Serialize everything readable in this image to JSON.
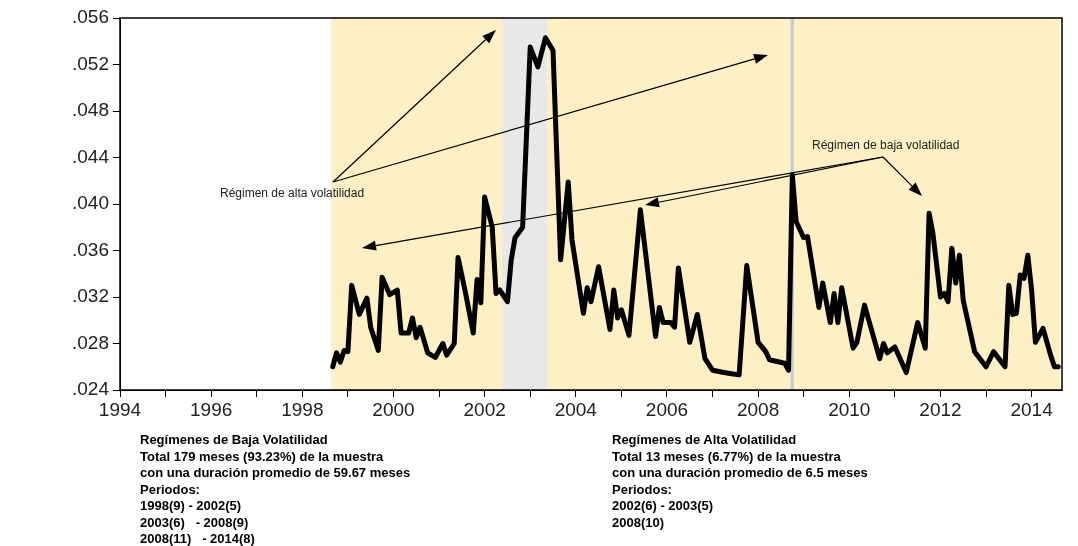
{
  "chart_data": {
    "type": "line",
    "x": [
      "1998-09",
      "1998-10",
      "1998-11",
      "1998-12",
      "1999-01",
      "1999-02",
      "1999-04",
      "1999-06",
      "1999-07",
      "1999-09",
      "1999-10",
      "1999-12",
      "2000-02",
      "2000-03",
      "2000-05",
      "2000-06",
      "2000-07",
      "2000-08",
      "2000-10",
      "2000-12",
      "2001-02",
      "2001-03",
      "2001-05",
      "2001-06",
      "2001-08",
      "2001-10",
      "2001-11",
      "2001-12",
      "2002-01",
      "2002-03",
      "2002-04",
      "2002-05",
      "2002-07",
      "2002-08",
      "2002-09",
      "2002-11",
      "2003-01",
      "2003-03",
      "2003-05",
      "2003-07",
      "2003-09",
      "2003-11",
      "2003-12",
      "2004-03",
      "2004-04",
      "2004-05",
      "2004-07",
      "2004-10",
      "2004-11",
      "2004-12",
      "2005-01",
      "2005-03",
      "2005-06",
      "2005-10",
      "2005-11",
      "2005-12",
      "2006-02",
      "2006-03",
      "2006-04",
      "2006-07",
      "2006-09",
      "2006-11",
      "2007-01",
      "2007-04",
      "2007-06",
      "2007-08",
      "2007-10",
      "2008-01",
      "2008-03",
      "2008-04",
      "2008-08",
      "2008-09",
      "2008-10",
      "2008-11",
      "2009-01",
      "2009-02",
      "2009-05",
      "2009-06",
      "2009-08",
      "2009-09",
      "2009-10",
      "2009-11",
      "2010-02",
      "2010-03",
      "2010-05",
      "2010-07",
      "2010-09",
      "2010-10",
      "2010-11",
      "2011-01",
      "2011-04",
      "2011-07",
      "2011-09",
      "2011-10",
      "2011-11",
      "2012-01",
      "2012-02",
      "2012-03",
      "2012-04",
      "2012-05",
      "2012-06",
      "2012-07",
      "2012-10",
      "2013-01",
      "2013-03",
      "2013-06",
      "2013-07",
      "2013-08",
      "2013-09",
      "2013-10",
      "2013-11",
      "2013-12",
      "2014-01",
      "2014-02",
      "2014-04",
      "2014-06",
      "2014-07",
      "2014-08"
    ],
    "series": [
      {
        "color": "#000000",
        "values": [
          0.026,
          0.0272,
          0.0264,
          0.0274,
          0.0273,
          0.033,
          0.0305,
          0.0319,
          0.0294,
          0.0274,
          0.0337,
          0.0322,
          0.0326,
          0.0289,
          0.0289,
          0.0302,
          0.0285,
          0.0294,
          0.0272,
          0.0268,
          0.028,
          0.027,
          0.028,
          0.0354,
          0.0323,
          0.0289,
          0.0335,
          0.0315,
          0.0406,
          0.038,
          0.0323,
          0.0326,
          0.0316,
          0.0352,
          0.0371,
          0.038,
          0.0535,
          0.0518,
          0.0543,
          0.0532,
          0.0352,
          0.0419,
          0.0369,
          0.0306,
          0.0328,
          0.0316,
          0.0346,
          0.0292,
          0.0326,
          0.0302,
          0.0309,
          0.0287,
          0.0395,
          0.0286,
          0.0311,
          0.0298,
          0.0298,
          0.0294,
          0.0345,
          0.0281,
          0.0305,
          0.0267,
          0.0257,
          0.0255,
          0.0254,
          0.0253,
          0.0347,
          0.0281,
          0.0273,
          0.0266,
          0.0263,
          0.0257,
          0.0425,
          0.0385,
          0.0371,
          0.0372,
          0.0311,
          0.0332,
          0.0298,
          0.0323,
          0.0298,
          0.0328,
          0.0276,
          0.0281,
          0.0313,
          0.029,
          0.0267,
          0.028,
          0.0272,
          0.0277,
          0.0255,
          0.0298,
          0.0276,
          0.0392,
          0.0375,
          0.032,
          0.0323,
          0.0316,
          0.0362,
          0.0332,
          0.0356,
          0.0317,
          0.0273,
          0.026,
          0.0273,
          0.026,
          0.033,
          0.0305,
          0.0306,
          0.0339,
          0.0336,
          0.0356,
          0.0326,
          0.0281,
          0.0293,
          0.027,
          0.026,
          0.026
        ]
      }
    ],
    "xlim": [
      "1994-01",
      "2014-09"
    ],
    "xticks": [
      {
        "value": "1994-01",
        "label": "1994"
      },
      {
        "value": "1995-01",
        "label": null
      },
      {
        "value": "1996-01",
        "label": "1996"
      },
      {
        "value": "1997-01",
        "label": null
      },
      {
        "value": "1998-01",
        "label": "1998"
      },
      {
        "value": "1999-01",
        "label": null
      },
      {
        "value": "2000-01",
        "label": "2000"
      },
      {
        "value": "2001-01",
        "label": null
      },
      {
        "value": "2002-01",
        "label": "2002"
      },
      {
        "value": "2003-01",
        "label": null
      },
      {
        "value": "2004-01",
        "label": "2004"
      },
      {
        "value": "2005-01",
        "label": null
      },
      {
        "value": "2006-01",
        "label": "2006"
      },
      {
        "value": "2007-01",
        "label": null
      },
      {
        "value": "2008-01",
        "label": "2008"
      },
      {
        "value": "2009-01",
        "label": null
      },
      {
        "value": "2010-01",
        "label": "2010"
      },
      {
        "value": "2011-01",
        "label": null
      },
      {
        "value": "2012-01",
        "label": "2012"
      },
      {
        "value": "2013-01",
        "label": null
      },
      {
        "value": "2014-01",
        "label": "2014"
      }
    ],
    "ylim": [
      0.024,
      0.056
    ],
    "yticks": [
      {
        "value": 0.024,
        "label": ".024"
      },
      {
        "value": 0.028,
        "label": ".028"
      },
      {
        "value": 0.032,
        "label": ".032"
      },
      {
        "value": 0.036,
        "label": ".036"
      },
      {
        "value": 0.04,
        "label": ".040"
      },
      {
        "value": 0.044,
        "label": ".044"
      },
      {
        "value": 0.048,
        "label": ".048"
      },
      {
        "value": 0.052,
        "label": ".052"
      },
      {
        "value": 0.056,
        "label": ".056"
      }
    ],
    "bands": [
      {
        "axis": "x",
        "from": "1998-09",
        "to": "2002-05",
        "color": "#fcf0c4"
      },
      {
        "axis": "x",
        "from": "2002-06",
        "to": "2003-05",
        "color": "#e8e8e8"
      },
      {
        "axis": "x",
        "from": "2003-06",
        "to": "2008-09",
        "color": "#fcf0c4"
      },
      {
        "axis": "x",
        "from": "2008-10",
        "to": "2008-10",
        "color": "#cccccc"
      },
      {
        "axis": "x",
        "from": "2008-11",
        "to": "2014-08",
        "color": "#fcf0c4"
      }
    ],
    "annotations": [
      "Régimen de alta volatilidad",
      "Régimen de baja volatilidad",
      "Regímenes de Baja Volatilidad\nTotal 179 meses (93.23%) de la muestra\ncon una duración promedio de 59.67 meses\nPeriodos:\n1998(9) - 2002(5)\n2003(6)   - 2008(9)\n2008(11)   - 2014(8)",
      "Regímenes de Alta Volatilidad\nTotal 13 meses (6.77%) de la muestra\ncon una duración promedio de 6.5 meses\nPeriodos:\n2002(6) - 2003(5)\n2008(10)"
    ],
    "grid": false,
    "legend": false,
    "marker": "none",
    "line_style": "solid"
  }
}
